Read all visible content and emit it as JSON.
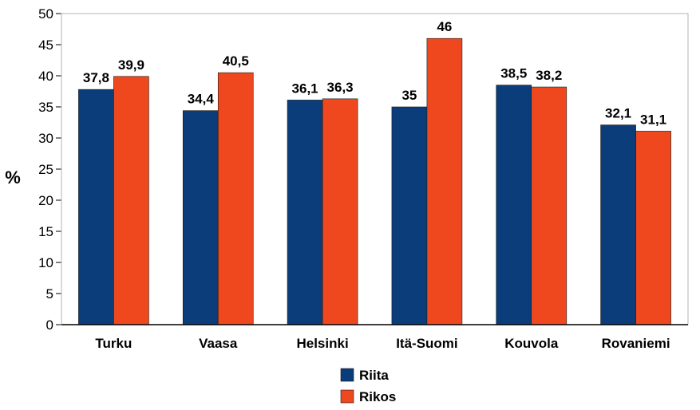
{
  "chart_data": {
    "type": "bar",
    "title": "",
    "xlabel": "",
    "ylabel": "%",
    "ylim": [
      0,
      50
    ],
    "ytick_step": 5,
    "grid": false,
    "legend_position": "bottom",
    "categories": [
      "Turku",
      "Vaasa",
      "Helsinki",
      "Itä-Suomi",
      "Kouvola",
      "Rovaniemi"
    ],
    "series": [
      {
        "name": "Riita",
        "color": "#0a3d7a",
        "values": [
          37.8,
          34.4,
          36.1,
          35,
          38.5,
          32.1
        ],
        "labels": [
          "37,8",
          "34,4",
          "36,1",
          "35",
          "38,5",
          "32,1"
        ]
      },
      {
        "name": "Rikos",
        "color": "#f0481e",
        "values": [
          39.9,
          40.5,
          36.3,
          46,
          38.2,
          31.1
        ],
        "labels": [
          "39,9",
          "40,5",
          "36,3",
          "46",
          "38,2",
          "31,1"
        ]
      }
    ]
  }
}
